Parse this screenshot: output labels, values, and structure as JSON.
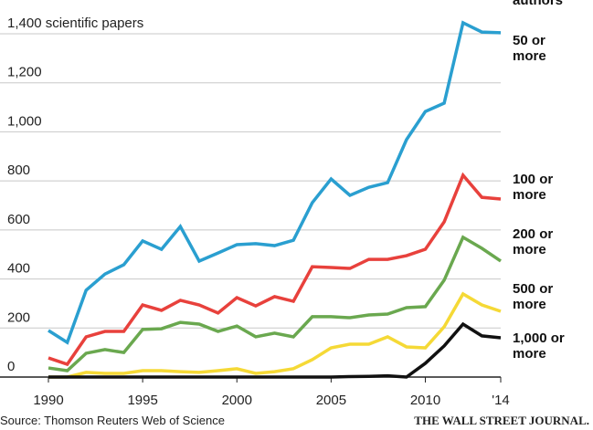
{
  "chart_data": {
    "type": "line",
    "annotation": "authors",
    "source": "Source: Thomson Reuters Web of Science",
    "credit": "THE WALL STREET JOURNAL.",
    "x": [
      1990,
      1991,
      1992,
      1993,
      1994,
      1995,
      1996,
      1997,
      1998,
      1999,
      2000,
      2001,
      2002,
      2003,
      2004,
      2005,
      2006,
      2007,
      2008,
      2009,
      2010,
      2011,
      2012,
      2013,
      2014
    ],
    "series": [
      {
        "name": "50 or more",
        "color": "#2a9fd0",
        "values": [
          190,
          141,
          354,
          420,
          458,
          555,
          521,
          614,
          473,
          506,
          540,
          544,
          536,
          558,
          711,
          808,
          741,
          774,
          793,
          968,
          1083,
          1117,
          1445,
          1407,
          1404
        ]
      },
      {
        "name": "100 or more",
        "color": "#e8413c",
        "values": [
          78,
          52,
          164,
          186,
          186,
          294,
          272,
          313,
          294,
          261,
          324,
          290,
          328,
          309,
          450,
          447,
          443,
          480,
          480,
          495,
          521,
          633,
          823,
          733,
          726
        ]
      },
      {
        "name": "200 or more",
        "color": "#6aa84f",
        "values": [
          37,
          26,
          97,
          112,
          100,
          194,
          197,
          223,
          216,
          186,
          208,
          164,
          179,
          164,
          246,
          246,
          242,
          253,
          257,
          283,
          287,
          395,
          570,
          525,
          473
        ]
      },
      {
        "name": "500 or more",
        "color": "#f5d936",
        "values": [
          0,
          0,
          19,
          15,
          15,
          26,
          26,
          22,
          19,
          26,
          34,
          15,
          22,
          34,
          71,
          119,
          134,
          134,
          164,
          123,
          119,
          205,
          339,
          294,
          268
        ]
      },
      {
        "name": "1,000 or more",
        "color": "#111111",
        "values": [
          0,
          0,
          0,
          0,
          0,
          0,
          0,
          0,
          0,
          0,
          0,
          0,
          0,
          0,
          0,
          0,
          2,
          3,
          5,
          0,
          56,
          127,
          216,
          168,
          160
        ]
      }
    ],
    "xlim": [
      1990,
      2014
    ],
    "xticks": [
      1990,
      1995,
      2000,
      2005,
      2010,
      {
        "value": 2014,
        "label": "'14"
      }
    ],
    "ylim": [
      0,
      1400
    ],
    "yticks": [
      0,
      200,
      400,
      600,
      800,
      {
        "value": 1000,
        "label": "1,000"
      },
      {
        "value": 1200,
        "label": "1,200"
      },
      {
        "value": 1400,
        "label": "1,400 scientific papers"
      }
    ],
    "grid": true
  }
}
